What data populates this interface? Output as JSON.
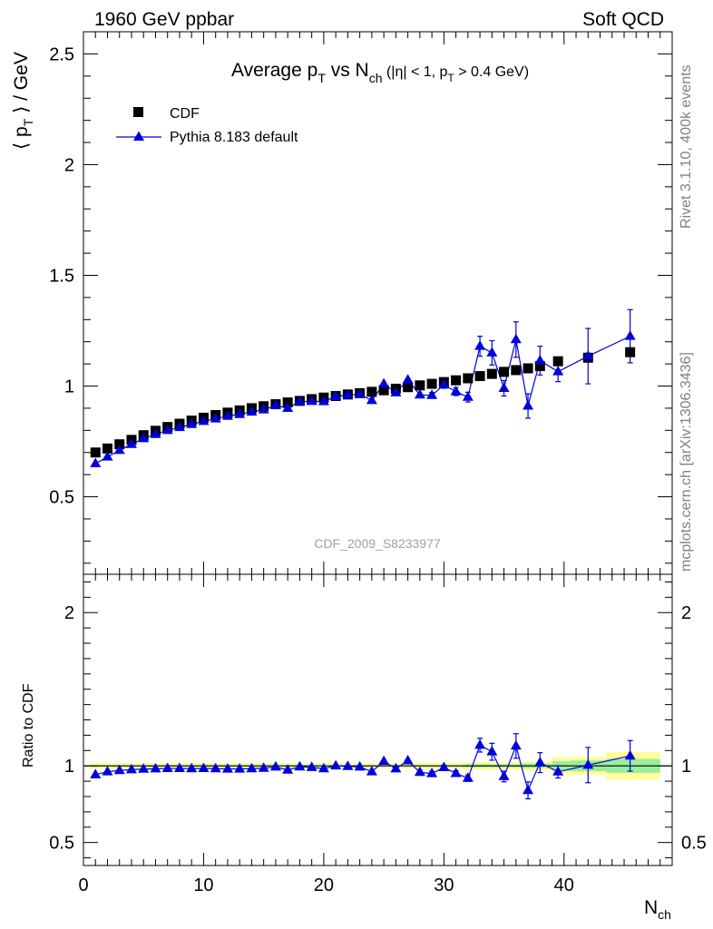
{
  "header": {
    "left": "1960 GeV ppbar",
    "right": "Soft QCD"
  },
  "side_labels": {
    "rivet": "Rivet 3.1.10,  400k events",
    "mcplots": "mcplots.cern.ch [arXiv:1306.3436]"
  },
  "colors": {
    "data": "#000000",
    "mc": "#0000dd",
    "band_inner": "#99ee99",
    "band_outer": "#ffff99"
  },
  "chart_data": [
    {
      "type": "scatter",
      "title": {
        "main": "Average p",
        "main_sub": "T",
        "vs": " vs N",
        "vs_sub": "ch",
        "cut_open": " (|η| < 1, p",
        "cut_sub": "T",
        "cut_close": " > 0.4 GeV)"
      },
      "ylabel": {
        "open": "⟨ p",
        "sub": "T",
        "close": " ⟩ / GeV"
      },
      "xlim": [
        0,
        49
      ],
      "ylim": [
        0.15,
        2.6
      ],
      "yticks": [
        0.5,
        1,
        1.5,
        2,
        2.5
      ],
      "ytick_labels": [
        "0.5",
        "1",
        "1.5",
        "2",
        "2.5"
      ],
      "watermark": "CDF_2009_S8233977",
      "legend": {
        "position": "top-left",
        "data": "CDF",
        "mc": "Pythia 8.183 default"
      },
      "series": [
        {
          "name": "CDF",
          "marker": "square",
          "x": [
            1,
            2,
            3,
            4,
            5,
            6,
            7,
            8,
            9,
            10,
            11,
            12,
            13,
            14,
            15,
            16,
            17,
            18,
            19,
            20,
            21,
            22,
            23,
            24,
            25,
            26,
            27,
            28,
            29,
            30,
            31,
            32,
            33,
            34,
            35,
            36,
            37,
            38,
            39.5,
            42,
            45.5
          ],
          "y": [
            0.7,
            0.718,
            0.737,
            0.757,
            0.778,
            0.798,
            0.815,
            0.83,
            0.844,
            0.857,
            0.869,
            0.88,
            0.89,
            0.9,
            0.909,
            0.918,
            0.926,
            0.933,
            0.941,
            0.948,
            0.955,
            0.962,
            0.968,
            0.974,
            0.981,
            0.988,
            0.995,
            1.003,
            1.01,
            1.018,
            1.026,
            1.035,
            1.045,
            1.055,
            1.064,
            1.072,
            1.08,
            1.09,
            1.112,
            1.128,
            1.153
          ]
        },
        {
          "name": "Pythia 8.183 default",
          "marker": "triangle",
          "x": [
            1,
            2,
            3,
            4,
            5,
            6,
            7,
            8,
            9,
            10,
            11,
            12,
            13,
            14,
            15,
            16,
            17,
            18,
            19,
            20,
            21,
            22,
            23,
            24,
            25,
            26,
            27,
            28,
            29,
            30,
            31,
            32,
            33,
            34,
            35,
            36,
            37,
            38,
            39.5,
            42,
            45.5
          ],
          "y": [
            0.65,
            0.68,
            0.71,
            0.737,
            0.763,
            0.782,
            0.8,
            0.813,
            0.827,
            0.841,
            0.852,
            0.864,
            0.872,
            0.883,
            0.893,
            0.912,
            0.9,
            0.93,
            0.931,
            0.93,
            0.953,
            0.96,
            0.963,
            0.935,
            1.01,
            0.97,
            1.028,
            0.96,
            0.958,
            1.005,
            0.975,
            0.95,
            1.18,
            1.15,
            0.99,
            1.21,
            0.91,
            1.115,
            1.065,
            1.135,
            1.225
          ],
          "err": [
            0.005,
            0.005,
            0.005,
            0.005,
            0.005,
            0.005,
            0.005,
            0.005,
            0.005,
            0.005,
            0.005,
            0.005,
            0.005,
            0.005,
            0.005,
            0.005,
            0.005,
            0.006,
            0.006,
            0.006,
            0.007,
            0.008,
            0.008,
            0.009,
            0.01,
            0.01,
            0.012,
            0.012,
            0.013,
            0.015,
            0.018,
            0.022,
            0.045,
            0.055,
            0.035,
            0.08,
            0.055,
            0.065,
            0.045,
            0.125,
            0.12
          ]
        }
      ]
    },
    {
      "type": "scatter",
      "title": "",
      "ylabel": "Ratio to CDF",
      "xlabel": {
        "main": "N",
        "sub": "ch"
      },
      "xlim": [
        0,
        49
      ],
      "ylim": [
        0.35,
        2.25
      ],
      "yticks": [
        0.5,
        1,
        2
      ],
      "ytick_labels": [
        "0.5",
        "1",
        "2"
      ],
      "xticks": [
        0,
        10,
        20,
        30,
        40
      ],
      "xtick_labels": [
        "0",
        "10",
        "20",
        "30",
        "40"
      ],
      "bands": [
        [
          0.5,
          31.5,
          0.995,
          1.005,
          0.982,
          1.018
        ],
        [
          31.5,
          36.5,
          0.99,
          1.01,
          0.975,
          1.025
        ],
        [
          36.5,
          39,
          0.985,
          1.015,
          0.97,
          1.03
        ],
        [
          39,
          40.5,
          0.97,
          1.03,
          0.945,
          1.055
        ],
        [
          40.5,
          43.5,
          0.965,
          1.035,
          0.94,
          1.06
        ],
        [
          43.5,
          48,
          0.955,
          1.045,
          0.91,
          1.09
        ]
      ],
      "series": [
        {
          "name": "Ratio",
          "marker": "triangle",
          "x": [
            1,
            2,
            3,
            4,
            5,
            6,
            7,
            8,
            9,
            10,
            11,
            12,
            13,
            14,
            15,
            16,
            17,
            18,
            19,
            20,
            21,
            22,
            23,
            24,
            25,
            26,
            27,
            28,
            29,
            30,
            31,
            32,
            33,
            34,
            35,
            36,
            37,
            38,
            39.5,
            42,
            45.5
          ],
          "y": [
            0.943,
            0.962,
            0.97,
            0.975,
            0.979,
            0.981,
            0.983,
            0.983,
            0.982,
            0.983,
            0.982,
            0.98,
            0.98,
            0.982,
            0.985,
            0.993,
            0.973,
            0.994,
            0.99,
            0.982,
            1.0,
            0.997,
            0.993,
            0.962,
            1.03,
            0.981,
            1.034,
            0.958,
            0.95,
            0.989,
            0.951,
            0.92,
            1.135,
            1.092,
            0.931,
            1.13,
            0.84,
            1.021,
            0.961,
            1.005,
            1.065
          ],
          "err": [
            0.007,
            0.007,
            0.007,
            0.007,
            0.007,
            0.007,
            0.007,
            0.007,
            0.007,
            0.007,
            0.007,
            0.007,
            0.007,
            0.007,
            0.007,
            0.007,
            0.008,
            0.008,
            0.008,
            0.008,
            0.009,
            0.009,
            0.01,
            0.01,
            0.011,
            0.011,
            0.012,
            0.013,
            0.014,
            0.015,
            0.017,
            0.021,
            0.045,
            0.055,
            0.035,
            0.08,
            0.055,
            0.065,
            0.04,
            0.115,
            0.1
          ]
        }
      ]
    }
  ]
}
